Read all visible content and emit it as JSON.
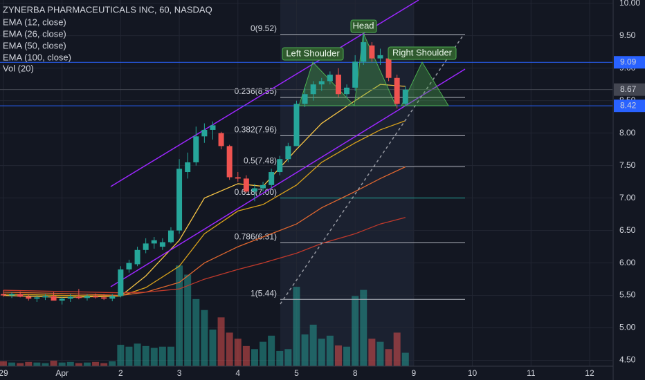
{
  "chart_data": {
    "type": "candlestick",
    "title": "ZYNERBA PHARMACEUTICALS INC, 60, NASDAQ",
    "x": [
      0,
      1,
      2,
      3,
      4,
      5,
      6,
      7,
      8,
      9,
      10,
      11,
      12,
      13,
      14,
      15,
      16,
      17,
      18,
      19,
      20,
      21,
      22,
      23,
      24,
      25,
      26,
      27,
      28,
      29,
      30,
      31,
      32,
      33,
      34,
      35,
      36,
      37,
      38,
      39,
      40,
      41,
      42,
      43,
      44,
      45,
      46,
      47,
      48
    ],
    "open": [
      5.52,
      5.5,
      5.52,
      5.48,
      5.45,
      5.47,
      5.49,
      5.42,
      5.45,
      5.48,
      5.46,
      5.49,
      5.47,
      5.45,
      5.49,
      5.9,
      5.98,
      6.2,
      6.3,
      6.25,
      6.32,
      6.5,
      7.4,
      7.55,
      7.95,
      8.05,
      8.0,
      7.8,
      7.32,
      7.3,
      7.1,
      7.15,
      7.2,
      7.4,
      7.6,
      7.8,
      8.45,
      8.6,
      8.75,
      8.8,
      8.9,
      8.6,
      8.7,
      9.1,
      9.35,
      9.15,
      9.15,
      8.85,
      8.45
    ],
    "high": [
      5.58,
      5.55,
      5.56,
      5.52,
      5.5,
      5.52,
      5.55,
      5.48,
      5.52,
      5.6,
      5.52,
      5.53,
      5.52,
      5.52,
      5.95,
      6.05,
      6.25,
      6.38,
      6.4,
      6.38,
      6.55,
      7.6,
      7.7,
      8.1,
      8.15,
      8.18,
      8.02,
      7.82,
      7.4,
      7.35,
      7.22,
      7.25,
      7.45,
      7.65,
      7.85,
      8.5,
      8.7,
      8.8,
      8.85,
      8.95,
      9.0,
      8.75,
      9.2,
      9.52,
      9.4,
      9.3,
      9.2,
      8.9,
      8.72
    ],
    "low": [
      5.48,
      5.46,
      5.47,
      5.42,
      5.4,
      5.43,
      5.44,
      5.36,
      5.4,
      5.44,
      5.42,
      5.45,
      5.43,
      5.41,
      5.47,
      5.85,
      5.95,
      6.15,
      6.22,
      6.2,
      6.3,
      6.45,
      7.3,
      7.5,
      7.85,
      7.9,
      7.75,
      7.28,
      7.25,
      7.08,
      6.95,
      7.1,
      7.15,
      7.35,
      7.55,
      7.8,
      8.4,
      8.5,
      8.65,
      8.75,
      8.55,
      8.55,
      8.65,
      9.05,
      9.1,
      9.05,
      8.8,
      8.38,
      8.42
    ],
    "close": [
      5.5,
      5.52,
      5.48,
      5.45,
      5.47,
      5.49,
      5.42,
      5.45,
      5.48,
      5.46,
      5.49,
      5.47,
      5.45,
      5.49,
      5.9,
      6.0,
      6.2,
      6.3,
      6.35,
      6.32,
      6.5,
      7.45,
      7.55,
      7.95,
      8.05,
      8.12,
      7.8,
      7.32,
      7.3,
      7.1,
      7.15,
      7.2,
      7.4,
      7.6,
      7.8,
      8.45,
      8.6,
      8.75,
      8.8,
      8.9,
      8.6,
      8.7,
      9.1,
      9.4,
      9.15,
      9.2,
      8.85,
      8.45,
      8.67
    ],
    "up_color": "#26a69a",
    "down_color": "#ef5350",
    "volume": {
      "name": "Vol (20)",
      "ylim": [
        0,
        600
      ],
      "values": [
        8,
        6,
        5,
        7,
        6,
        5,
        9,
        6,
        7,
        5,
        6,
        7,
        5,
        8,
        35,
        32,
        37,
        33,
        30,
        32,
        32,
        165,
        150,
        110,
        92,
        60,
        80,
        55,
        45,
        33,
        28,
        40,
        50,
        25,
        28,
        130,
        52,
        68,
        45,
        50,
        34,
        32,
        115,
        125,
        45,
        40,
        28,
        55,
        22
      ]
    },
    "series": [
      {
        "name": "EMA (12, close)",
        "color": "#f6c445",
        "x": [
          0,
          7,
          14,
          17,
          21,
          24,
          28,
          31,
          35,
          38,
          42,
          45,
          48
        ],
        "values": [
          5.5,
          5.47,
          5.49,
          5.8,
          6.35,
          7.0,
          7.22,
          7.18,
          7.75,
          8.15,
          8.5,
          8.75,
          8.72
        ]
      },
      {
        "name": "EMA (26, close)",
        "color": "#d9a21b",
        "x": [
          0,
          7,
          14,
          17,
          21,
          24,
          28,
          31,
          35,
          38,
          42,
          45,
          48
        ],
        "values": [
          5.52,
          5.5,
          5.49,
          5.62,
          5.95,
          6.45,
          6.8,
          6.9,
          7.2,
          7.55,
          7.85,
          8.05,
          8.19
        ]
      },
      {
        "name": "EMA (50, close)",
        "color": "#e0672f",
        "x": [
          0,
          7,
          14,
          17,
          21,
          24,
          28,
          31,
          35,
          38,
          42,
          45,
          48
        ],
        "values": [
          5.55,
          5.53,
          5.5,
          5.55,
          5.7,
          6.0,
          6.25,
          6.4,
          6.6,
          6.85,
          7.1,
          7.3,
          7.48
        ]
      },
      {
        "name": "EMA (100, close)",
        "color": "#c0392b",
        "x": [
          0,
          7,
          14,
          17,
          21,
          24,
          28,
          31,
          35,
          38,
          42,
          45,
          48
        ],
        "values": [
          5.58,
          5.56,
          5.54,
          5.55,
          5.6,
          5.75,
          5.9,
          6.0,
          6.15,
          6.3,
          6.45,
          6.6,
          6.7
        ]
      }
    ],
    "xlim": [
      -0.41,
      72.73
    ],
    "ylim": [
      4.41,
      10.05
    ],
    "xticks": [
      {
        "value": 0,
        "label": "29"
      },
      {
        "value": 7,
        "label": "Apr"
      },
      {
        "value": 14,
        "label": "2"
      },
      {
        "value": 21,
        "label": "3"
      },
      {
        "value": 28,
        "label": "4"
      },
      {
        "value": 35,
        "label": "5"
      },
      {
        "value": 42,
        "label": "8"
      },
      {
        "value": 49,
        "label": "9"
      },
      {
        "value": 56,
        "label": "10"
      },
      {
        "value": 63,
        "label": "11"
      },
      {
        "value": 70,
        "label": "12"
      }
    ],
    "yticks": [
      {
        "value": 10,
        "label": "10.00"
      },
      {
        "value": 9.5,
        "label": "9.50"
      },
      {
        "value": 9,
        "label": "9.00"
      },
      {
        "value": 8.5,
        "label": "8.50"
      },
      {
        "value": 8,
        "label": "8.00"
      },
      {
        "value": 7.5,
        "label": "7.50"
      },
      {
        "value": 7,
        "label": "7.00"
      },
      {
        "value": 6.5,
        "label": "6.50"
      },
      {
        "value": 6,
        "label": "6.00"
      },
      {
        "value": 5.5,
        "label": "5.50"
      },
      {
        "value": 5,
        "label": "5.00"
      },
      {
        "value": 4.5,
        "label": "4.50"
      }
    ],
    "price_lines": [
      {
        "value": 9.09,
        "color": "#2962ff"
      },
      {
        "value": 8.67,
        "color": "#434651"
      },
      {
        "value": 8.42,
        "color": "#2962ff"
      }
    ],
    "fib_levels": [
      {
        "value": 9.52,
        "label": "0(9.52)",
        "color": "#b2b5be"
      },
      {
        "value": 8.55,
        "label": "0.236(8.55)",
        "color": "#b2b5be"
      },
      {
        "value": 7.96,
        "label": "0.382(7.96)",
        "color": "#b2b5be"
      },
      {
        "value": 7.48,
        "label": "0.5(7.48)",
        "color": "#b2b5be"
      },
      {
        "value": 7.0,
        "label": "0.618(7.00)",
        "color": "#26a69a"
      },
      {
        "value": 6.31,
        "label": "0.786(6.31)",
        "color": "#b2b5be"
      },
      {
        "value": 5.44,
        "label": "1(5.44)",
        "color": "#b2b5be"
      }
    ],
    "annotations": [
      "Left Shoulder",
      "Head",
      "Right Shoulder"
    ]
  }
}
